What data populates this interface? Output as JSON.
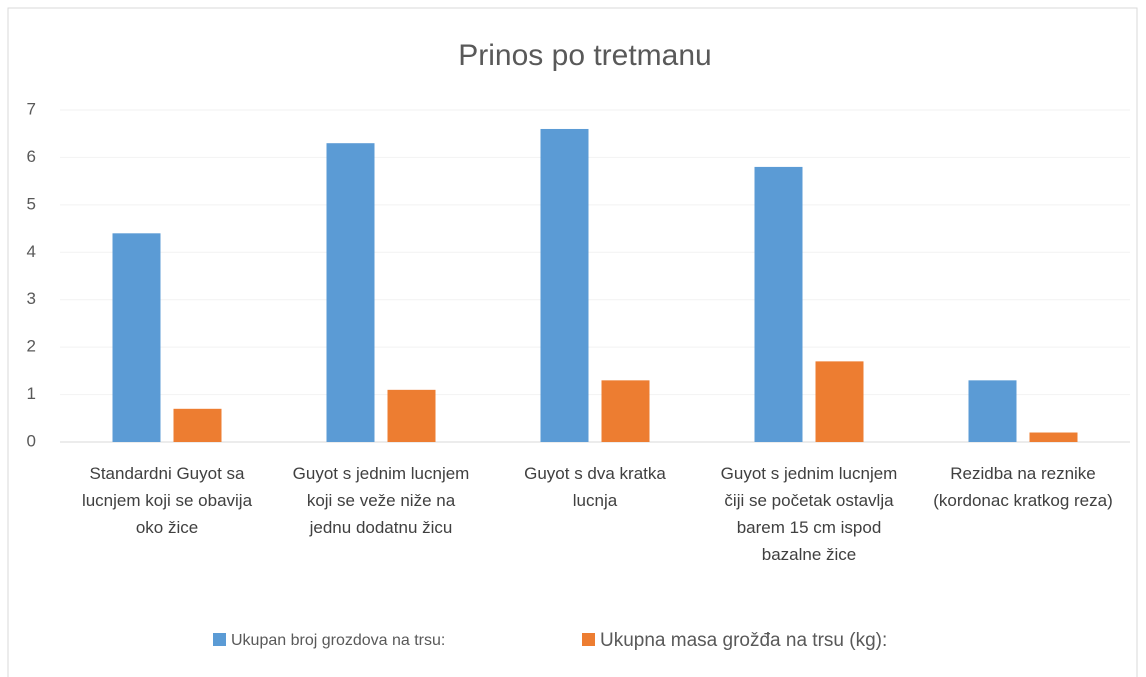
{
  "chart_data": {
    "type": "bar",
    "title": "Prinos po tretmanu",
    "categories": [
      "Standardni Guyot sa lucnjem koji se obavija oko žice",
      "Guyot s jednim lucnjem koji se veže niže na jednu dodatnu žicu",
      "Guyot s dva kratka lucnja",
      "Guyot s jednim lucnjem čiji se početak ostavlja barem 15 cm ispod bazalne žice",
      "Rezidba na reznike (kordonac kratkog reza)"
    ],
    "series": [
      {
        "name": "Ukupan broj grozdova na trsu:",
        "color": "#5b9bd5",
        "values": [
          4.4,
          6.3,
          6.6,
          5.8,
          1.3
        ]
      },
      {
        "name": "Ukupna masa grožđa na trsu (kg):",
        "color": "#ed7d31",
        "values": [
          0.7,
          1.1,
          1.3,
          1.7,
          0.2
        ]
      }
    ],
    "ylim": [
      0,
      7
    ],
    "yticks": [
      0,
      1,
      2,
      3,
      4,
      5,
      6,
      7
    ],
    "grid": true,
    "legend": "bottom"
  }
}
